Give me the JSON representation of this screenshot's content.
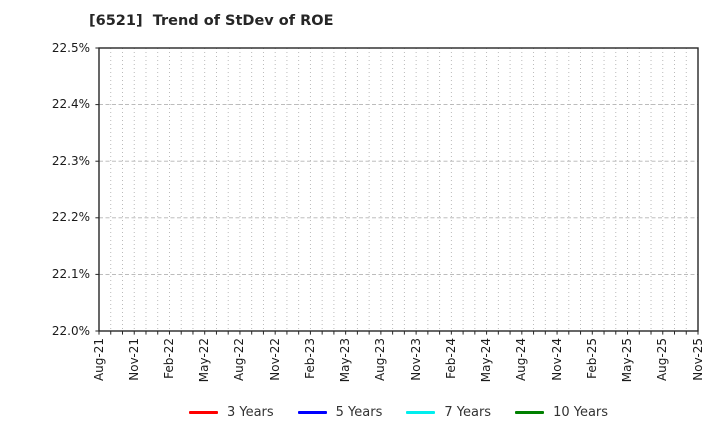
{
  "chart_data": {
    "type": "line",
    "title": "[6521]  Trend of StDev of ROE",
    "x_tick_labels": [
      "Aug-21",
      "Nov-21",
      "Feb-22",
      "May-22",
      "Aug-22",
      "Nov-22",
      "Feb-23",
      "May-23",
      "Aug-23",
      "Nov-23",
      "Feb-24",
      "May-24",
      "Aug-24",
      "Nov-24",
      "Feb-25",
      "May-25",
      "Aug-25",
      "Nov-25"
    ],
    "y_tick_labels": [
      "22.0%",
      "22.1%",
      "22.2%",
      "22.3%",
      "22.4%",
      "22.5%"
    ],
    "ylim": [
      22.0,
      22.5
    ],
    "y_unit": "%",
    "grid": true,
    "minor_x_gridlines": "monthly",
    "legend_position": "bottom",
    "series": [
      {
        "name": "3 Years",
        "color": "#ff0000",
        "values": []
      },
      {
        "name": "5 Years",
        "color": "#0000ff",
        "values": []
      },
      {
        "name": "7 Years",
        "color": "#00eeee",
        "values": []
      },
      {
        "name": "10 Years",
        "color": "#008000",
        "values": []
      }
    ],
    "note": "plot area contains no visible data lines"
  },
  "colors": {
    "axis": "#262626",
    "gridline": "#b3b3b3",
    "title_text": "#262626",
    "tick_text": "#1a1a1a",
    "background": "#ffffff"
  }
}
